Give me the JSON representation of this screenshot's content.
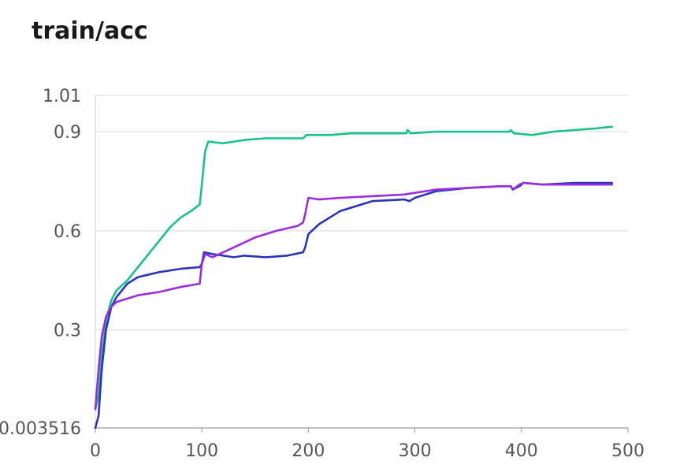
{
  "chart_data": {
    "type": "line",
    "title": "train/acc",
    "xlabel": "",
    "ylabel": "",
    "xlim": [
      0,
      500
    ],
    "ylim": [
      0.003516,
      1.01
    ],
    "x_ticks": [
      0,
      100,
      200,
      300,
      400,
      500
    ],
    "y_ticks": [
      0.003516,
      0.3,
      0.6,
      0.9,
      1.01
    ],
    "y_tick_labels": [
      "0.003516",
      "0.3",
      "0.6",
      "0.9",
      "1.01"
    ],
    "grid": "horizontal",
    "series": [
      {
        "color": "#19c28a",
        "points": [
          [
            0,
            0.06
          ],
          [
            3,
            0.1
          ],
          [
            6,
            0.22
          ],
          [
            10,
            0.33
          ],
          [
            15,
            0.39
          ],
          [
            20,
            0.42
          ],
          [
            30,
            0.45
          ],
          [
            40,
            0.49
          ],
          [
            50,
            0.53
          ],
          [
            60,
            0.57
          ],
          [
            70,
            0.61
          ],
          [
            80,
            0.64
          ],
          [
            90,
            0.66
          ],
          [
            98,
            0.68
          ],
          [
            100,
            0.74
          ],
          [
            103,
            0.84
          ],
          [
            106,
            0.87
          ],
          [
            120,
            0.865
          ],
          [
            140,
            0.875
          ],
          [
            160,
            0.88
          ],
          [
            180,
            0.88
          ],
          [
            195,
            0.88
          ],
          [
            198,
            0.89
          ],
          [
            220,
            0.89
          ],
          [
            240,
            0.895
          ],
          [
            260,
            0.895
          ],
          [
            280,
            0.895
          ],
          [
            292,
            0.895
          ],
          [
            293,
            0.905
          ],
          [
            296,
            0.895
          ],
          [
            320,
            0.9
          ],
          [
            350,
            0.9
          ],
          [
            380,
            0.9
          ],
          [
            389,
            0.9
          ],
          [
            390,
            0.905
          ],
          [
            393,
            0.895
          ],
          [
            410,
            0.89
          ],
          [
            430,
            0.9
          ],
          [
            450,
            0.905
          ],
          [
            470,
            0.91
          ],
          [
            485,
            0.915
          ]
        ]
      },
      {
        "color": "#2a35b8",
        "points": [
          [
            0,
            0.003516
          ],
          [
            3,
            0.04
          ],
          [
            6,
            0.18
          ],
          [
            10,
            0.3
          ],
          [
            15,
            0.37
          ],
          [
            20,
            0.4
          ],
          [
            30,
            0.44
          ],
          [
            40,
            0.46
          ],
          [
            60,
            0.475
          ],
          [
            80,
            0.485
          ],
          [
            98,
            0.49
          ],
          [
            100,
            0.5
          ],
          [
            102,
            0.535
          ],
          [
            110,
            0.53
          ],
          [
            120,
            0.525
          ],
          [
            130,
            0.52
          ],
          [
            140,
            0.525
          ],
          [
            160,
            0.52
          ],
          [
            180,
            0.525
          ],
          [
            195,
            0.535
          ],
          [
            197,
            0.55
          ],
          [
            200,
            0.59
          ],
          [
            210,
            0.62
          ],
          [
            230,
            0.66
          ],
          [
            260,
            0.69
          ],
          [
            290,
            0.695
          ],
          [
            295,
            0.69
          ],
          [
            300,
            0.7
          ],
          [
            320,
            0.72
          ],
          [
            350,
            0.73
          ],
          [
            380,
            0.735
          ],
          [
            390,
            0.735
          ],
          [
            392,
            0.725
          ],
          [
            398,
            0.735
          ],
          [
            402,
            0.745
          ],
          [
            420,
            0.74
          ],
          [
            450,
            0.745
          ],
          [
            485,
            0.745
          ]
        ]
      },
      {
        "color": "#9b2de0",
        "points": [
          [
            0,
            0.06
          ],
          [
            3,
            0.18
          ],
          [
            6,
            0.28
          ],
          [
            10,
            0.34
          ],
          [
            15,
            0.37
          ],
          [
            20,
            0.385
          ],
          [
            30,
            0.395
          ],
          [
            40,
            0.405
          ],
          [
            60,
            0.415
          ],
          [
            80,
            0.43
          ],
          [
            98,
            0.44
          ],
          [
            100,
            0.5
          ],
          [
            103,
            0.53
          ],
          [
            110,
            0.52
          ],
          [
            130,
            0.55
          ],
          [
            150,
            0.58
          ],
          [
            170,
            0.6
          ],
          [
            190,
            0.615
          ],
          [
            195,
            0.625
          ],
          [
            197,
            0.65
          ],
          [
            200,
            0.7
          ],
          [
            210,
            0.695
          ],
          [
            230,
            0.7
          ],
          [
            260,
            0.705
          ],
          [
            290,
            0.71
          ],
          [
            300,
            0.715
          ],
          [
            320,
            0.725
          ],
          [
            350,
            0.73
          ],
          [
            380,
            0.735
          ],
          [
            390,
            0.735
          ],
          [
            392,
            0.725
          ],
          [
            398,
            0.74
          ],
          [
            402,
            0.745
          ],
          [
            420,
            0.74
          ],
          [
            450,
            0.74
          ],
          [
            485,
            0.74
          ]
        ]
      }
    ]
  }
}
